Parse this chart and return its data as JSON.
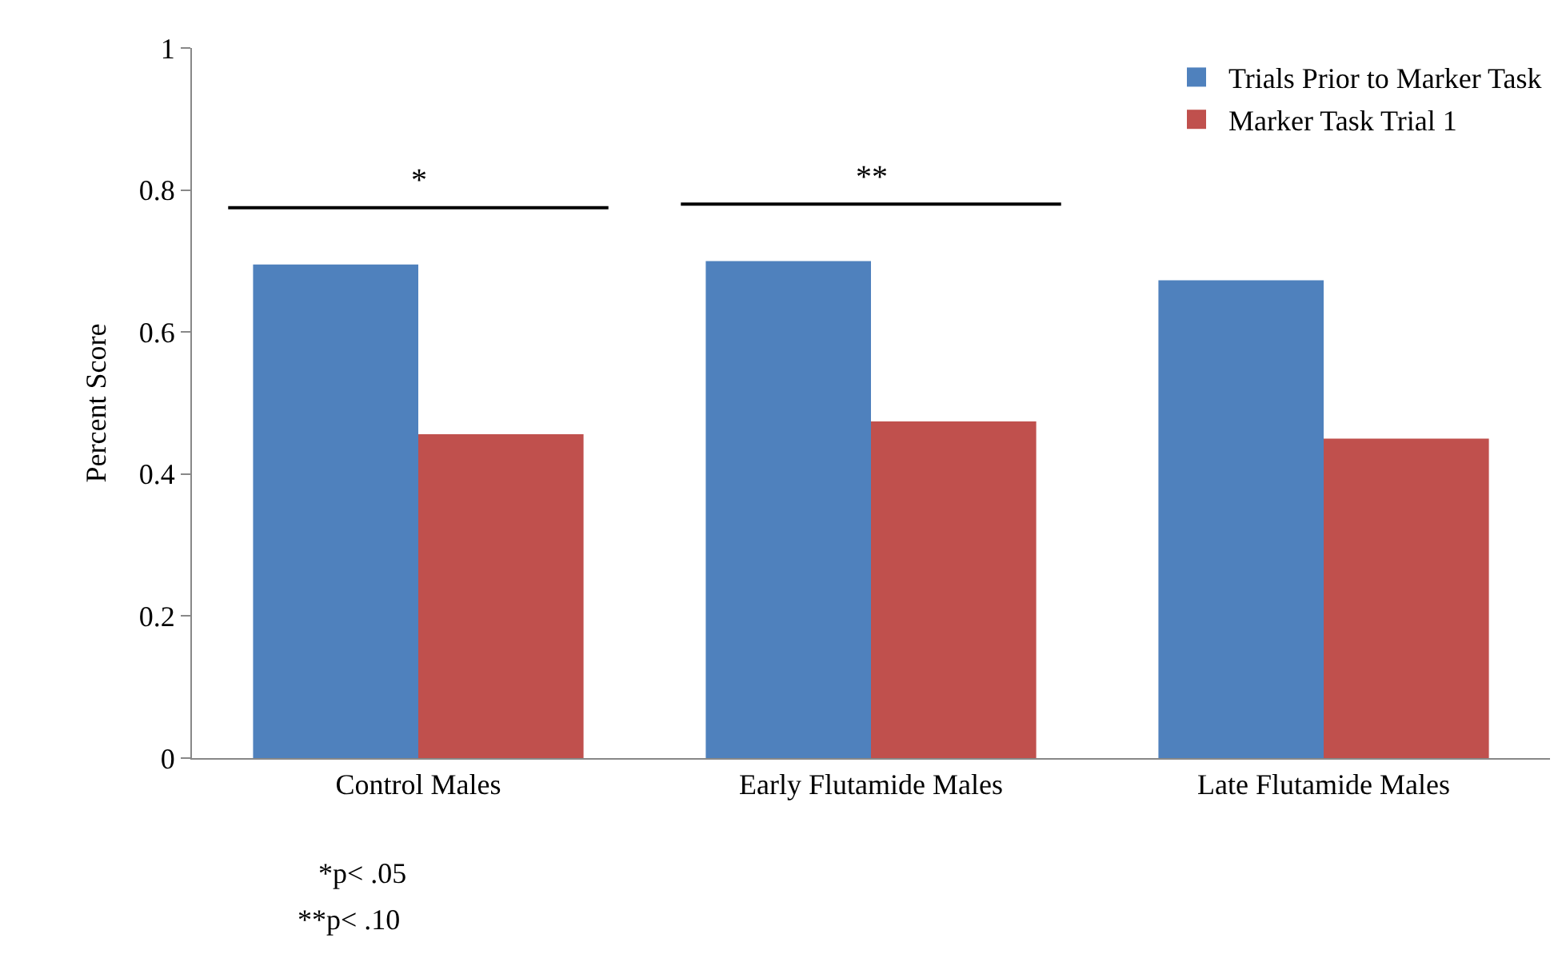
{
  "chart_data": {
    "type": "bar",
    "ylabel": "Percent Score",
    "categories": [
      "Control Males",
      "Early Flutamide Males",
      "Late Flutamide Males"
    ],
    "series": [
      {
        "name": "Trials Prior to Marker Task",
        "color": "#4f81bd",
        "values": [
          0.695,
          0.7,
          0.673
        ]
      },
      {
        "name": "Marker Task Trial 1",
        "color": "#c0504d",
        "values": [
          0.456,
          0.474,
          0.45
        ]
      }
    ],
    "ylim": [
      0,
      1
    ],
    "yticks": [
      0,
      0.2,
      0.4,
      0.6,
      0.8,
      1
    ],
    "legend": "top right",
    "annotations": [
      "*",
      "**",
      "*p< .05",
      "**p< .10"
    ]
  }
}
